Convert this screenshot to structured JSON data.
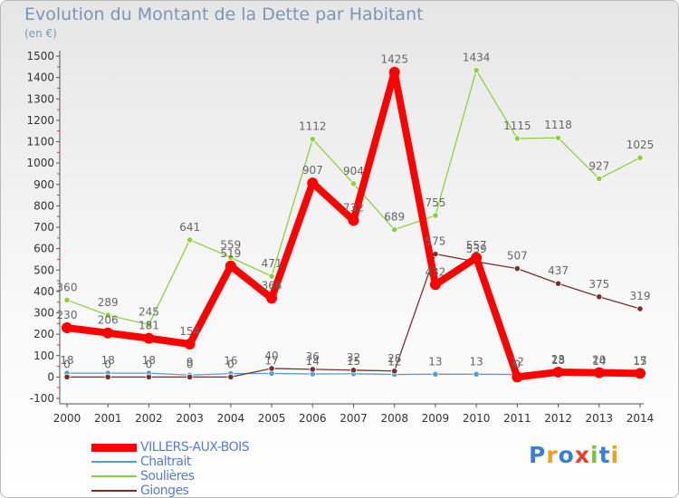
{
  "title": "Evolution du Montant de la Dette par Habitant",
  "unit": "(en €)",
  "logo": "Proxiti",
  "chart_data": {
    "type": "line",
    "title": "Evolution du Montant de la Dette par Habitant",
    "ylabel": "(en €)",
    "x": [
      "2000",
      "2001",
      "2002",
      "2003",
      "2004",
      "2005",
      "2006",
      "2007",
      "2008",
      "2009",
      "2010",
      "2011",
      "2012",
      "2013",
      "2014"
    ],
    "ylim": [
      -100,
      1500
    ],
    "yticks": [
      -100,
      0,
      100,
      200,
      300,
      400,
      500,
      600,
      700,
      800,
      900,
      1000,
      1100,
      1200,
      1300,
      1400,
      1500
    ],
    "grid": false,
    "legend_position": "bottom-left",
    "series": [
      {
        "name": "VILLERS-AUX-BOIS",
        "color": "#ff0000",
        "values": [
          230,
          206,
          181,
          154,
          519,
          368,
          907,
          732,
          1425,
          432,
          557,
          0,
          23,
          20,
          17
        ]
      },
      {
        "name": "Chaltrait",
        "color": "#5b9bd5",
        "values": [
          18,
          18,
          18,
          9,
          16,
          17,
          14,
          15,
          12,
          13,
          13,
          12,
          18,
          14,
          15
        ]
      },
      {
        "name": "Soulières",
        "color": "#8bd13f",
        "values": [
          360,
          289,
          245,
          641,
          559,
          471,
          1112,
          904,
          689,
          755,
          1434,
          1115,
          1118,
          927,
          1025
        ]
      },
      {
        "name": "Gionges",
        "color": "#7a2f2f",
        "values": [
          0,
          0,
          0,
          0,
          0,
          40,
          36,
          32,
          28,
          575,
          539,
          507,
          437,
          375,
          319
        ]
      }
    ]
  }
}
